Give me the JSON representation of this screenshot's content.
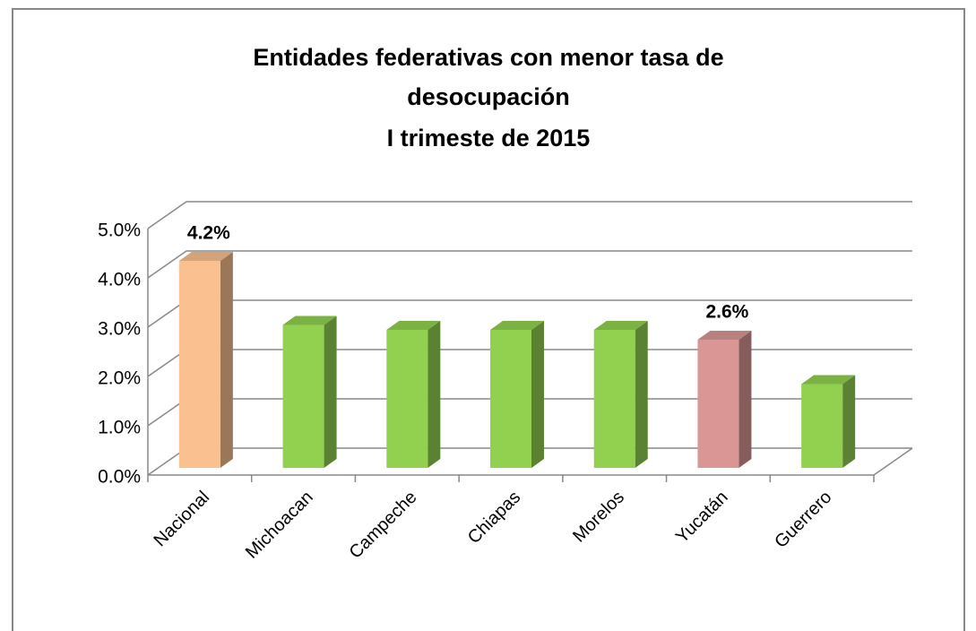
{
  "chart_data": {
    "type": "bar3d",
    "title": [
      "Entidades federativas con menor tasa de",
      "desocupación",
      "I trimeste de 2015"
    ],
    "categories": [
      "Nacional",
      "Michoacan",
      "Campeche",
      "Chiapas",
      "Morelos",
      "Yucatán",
      "Guerrero"
    ],
    "values": [
      4.2,
      2.9,
      2.8,
      2.8,
      2.8,
      2.6,
      1.7
    ],
    "value_labels": [
      "4.2%",
      null,
      null,
      null,
      null,
      "2.6%",
      null
    ],
    "colors": [
      "#fac08f",
      "#92d050",
      "#92d050",
      "#92d050",
      "#92d050",
      "#d99694",
      "#92d050"
    ],
    "ylim": [
      0,
      5
    ],
    "yticks": [
      {
        "value": 0,
        "label": "0.0%"
      },
      {
        "value": 1,
        "label": "1.0%"
      },
      {
        "value": 2,
        "label": "2.0%"
      },
      {
        "value": 3,
        "label": "3.0%"
      },
      {
        "value": 4,
        "label": "4.0%"
      },
      {
        "value": 5,
        "label": "5.0%"
      }
    ],
    "grid": true
  }
}
